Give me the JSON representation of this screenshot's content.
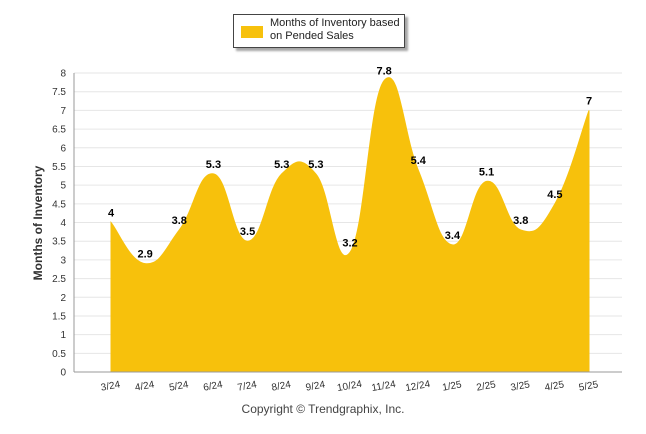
{
  "legend": {
    "label": "Months of Inventory based on Pended Sales"
  },
  "footer": {
    "copyright": "Copyright © Trendgraphix, Inc."
  },
  "colors": {
    "area_fill": "#f7c10c",
    "gridline": "#e6e6e6",
    "axis": "#999999",
    "tick_text": "#333333",
    "data_label": "#000000"
  },
  "chart_data": {
    "type": "area",
    "categories": [
      "3/24",
      "4/24",
      "5/24",
      "6/24",
      "7/24",
      "8/24",
      "9/24",
      "10/24",
      "11/24",
      "12/24",
      "1/25",
      "2/25",
      "3/25",
      "4/25",
      "5/25"
    ],
    "series": [
      {
        "name": "Months of Inventory based on Pended Sales",
        "values": [
          4,
          2.9,
          3.8,
          5.3,
          3.5,
          5.3,
          5.3,
          3.2,
          7.8,
          5.4,
          3.4,
          5.1,
          3.8,
          4.5,
          7
        ]
      }
    ],
    "title": "",
    "xlabel": "",
    "ylabel": "Months of Inventory",
    "ylim": [
      0,
      8
    ],
    "yticks": [
      "0",
      "0.5",
      "1",
      "1.5",
      "2",
      "2.5",
      "3",
      "3.5",
      "4",
      "4.5",
      "5",
      "5.5",
      "6",
      "6.5",
      "7",
      "7.5",
      "8"
    ],
    "grid": true,
    "legend_position": "top-center",
    "smoothed": true
  }
}
